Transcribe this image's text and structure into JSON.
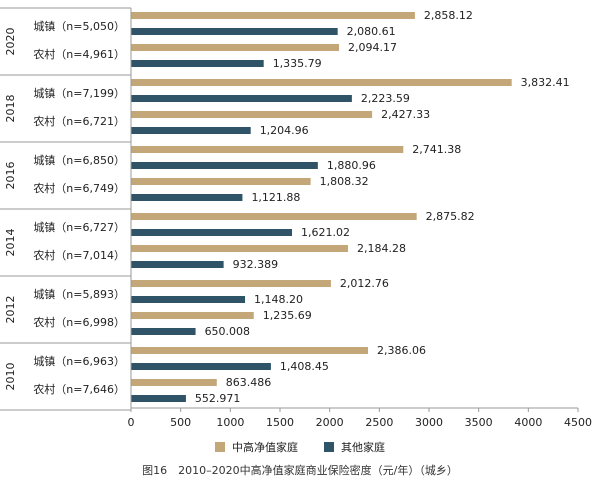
{
  "chart_data": {
    "type": "bar",
    "orientation": "horizontal",
    "caption": "图16　2010–2020中高净值家庭商业保险密度（元/年）（城乡）",
    "xlim": [
      0,
      4500
    ],
    "xticks": [
      "0",
      "500",
      "1000",
      "1500",
      "2000",
      "2500",
      "3000",
      "3500",
      "4000",
      "4500"
    ],
    "legend_position": "bottom",
    "series": [
      {
        "name": "中高净值家庭",
        "color": "#C3A778"
      },
      {
        "name": "其他家庭",
        "color": "#2F5467"
      }
    ],
    "groups": [
      {
        "year": "2020",
        "rows": [
          {
            "label": "城镇（n=5,050）",
            "values": [
              2858.12,
              2080.61
            ],
            "value_labels": [
              "2,858.12",
              "2,080.61"
            ]
          },
          {
            "label": "农村（n=4,961）",
            "values": [
              2094.17,
              1335.79
            ],
            "value_labels": [
              "2,094.17",
              "1,335.79"
            ]
          }
        ]
      },
      {
        "year": "2018",
        "rows": [
          {
            "label": "城镇（n=7,199）",
            "values": [
              3832.41,
              2223.59
            ],
            "value_labels": [
              "3,832.41",
              "2,223.59"
            ]
          },
          {
            "label": "农村（n=6,721）",
            "values": [
              2427.33,
              1204.96
            ],
            "value_labels": [
              "2,427.33",
              "1,204.96"
            ]
          }
        ]
      },
      {
        "year": "2016",
        "rows": [
          {
            "label": "城镇（n=6,850）",
            "values": [
              2741.38,
              1880.96
            ],
            "value_labels": [
              "2,741.38",
              "1,880.96"
            ]
          },
          {
            "label": "农村（n=6,749）",
            "values": [
              1808.32,
              1121.88
            ],
            "value_labels": [
              "1,808.32",
              "1,121.88"
            ]
          }
        ]
      },
      {
        "year": "2014",
        "rows": [
          {
            "label": "城镇（n=6,727）",
            "values": [
              2875.82,
              1621.02
            ],
            "value_labels": [
              "2,875.82",
              "1,621.02"
            ]
          },
          {
            "label": "农村（n=7,014）",
            "values": [
              2184.28,
              932.389
            ],
            "value_labels": [
              "2,184.28",
              "932.389"
            ]
          }
        ]
      },
      {
        "year": "2012",
        "rows": [
          {
            "label": "城镇（n=5,893）",
            "values": [
              2012.76,
              1148.2
            ],
            "value_labels": [
              "2,012.76",
              "1,148.20"
            ]
          },
          {
            "label": "农村（n=6,998）",
            "values": [
              1235.69,
              650.008
            ],
            "value_labels": [
              "1,235.69",
              "650.008"
            ]
          }
        ]
      },
      {
        "year": "2010",
        "rows": [
          {
            "label": "城镇（n=6,963）",
            "values": [
              2386.06,
              1408.45
            ],
            "value_labels": [
              "2,386.06",
              "1,408.45"
            ]
          },
          {
            "label": "农村（n=7,646）",
            "values": [
              863.486,
              552.971
            ],
            "value_labels": [
              "863.486",
              "552.971"
            ]
          }
        ]
      }
    ]
  }
}
